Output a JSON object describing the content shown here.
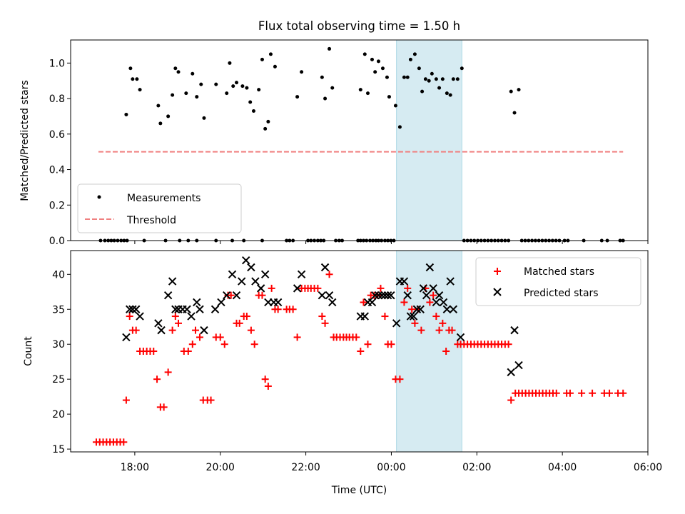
{
  "chart_data": {
    "type": "scatter",
    "title": "Flux total observing time = 1.50 h",
    "xlabel": "Time (UTC)",
    "x_unit": "hours since 00:00 UTC (negative = previous day)",
    "xlim": [
      -7.5,
      6.0
    ],
    "xticks": [
      {
        "v": -6,
        "label": "18:00"
      },
      {
        "v": -4,
        "label": "20:00"
      },
      {
        "v": -2,
        "label": "22:00"
      },
      {
        "v": 0,
        "label": "00:00"
      },
      {
        "v": 2,
        "label": "02:00"
      },
      {
        "v": 4,
        "label": "04:00"
      },
      {
        "v": 6,
        "label": "06:00"
      }
    ],
    "highlight_span": [
      0.12,
      1.65
    ],
    "top": {
      "ylabel": "Matched/Predicted stars",
      "ylim": [
        0,
        1.13
      ],
      "yticks": [
        {
          "v": 0.0,
          "label": "0.0"
        },
        {
          "v": 0.2,
          "label": "0.2"
        },
        {
          "v": 0.4,
          "label": "0.4"
        },
        {
          "v": 0.6,
          "label": "0.6"
        },
        {
          "v": 0.8,
          "label": "0.8"
        },
        {
          "v": 1.0,
          "label": "1.0"
        }
      ],
      "legend": {
        "position": "lower-left",
        "items": [
          "Measurements",
          "Threshold"
        ]
      },
      "threshold": {
        "value": 0.5,
        "x_range": [
          -6.85,
          5.42
        ]
      },
      "measurements": [
        [
          -6.2,
          0.71
        ],
        [
          -6.1,
          0.97
        ],
        [
          -6.05,
          0.91
        ],
        [
          -5.95,
          0.91
        ],
        [
          -5.88,
          0.85
        ],
        [
          -5.45,
          0.76
        ],
        [
          -5.4,
          0.66
        ],
        [
          -5.22,
          0.7
        ],
        [
          -5.12,
          0.82
        ],
        [
          -5.05,
          0.97
        ],
        [
          -4.98,
          0.95
        ],
        [
          -4.8,
          0.83
        ],
        [
          -4.65,
          0.94
        ],
        [
          -4.55,
          0.81
        ],
        [
          -4.45,
          0.88
        ],
        [
          -4.38,
          0.69
        ],
        [
          -4.1,
          0.88
        ],
        [
          -3.85,
          0.83
        ],
        [
          -3.78,
          1.0
        ],
        [
          -3.7,
          0.87
        ],
        [
          -3.62,
          0.89
        ],
        [
          -3.48,
          0.87
        ],
        [
          -3.38,
          0.86
        ],
        [
          -3.3,
          0.78
        ],
        [
          -3.22,
          0.73
        ],
        [
          -3.1,
          0.85
        ],
        [
          -3.02,
          1.02
        ],
        [
          -2.95,
          0.63
        ],
        [
          -2.88,
          0.67
        ],
        [
          -2.82,
          1.05
        ],
        [
          -2.72,
          0.98
        ],
        [
          -2.2,
          0.81
        ],
        [
          -2.1,
          0.95
        ],
        [
          -1.62,
          0.92
        ],
        [
          -1.55,
          0.8
        ],
        [
          -1.45,
          1.08
        ],
        [
          -1.38,
          0.86
        ],
        [
          -0.72,
          0.85
        ],
        [
          -0.62,
          1.05
        ],
        [
          -0.55,
          0.83
        ],
        [
          -0.45,
          1.02
        ],
        [
          -0.38,
          0.95
        ],
        [
          -0.3,
          1.01
        ],
        [
          -0.2,
          0.97
        ],
        [
          -0.1,
          0.92
        ],
        [
          -0.05,
          0.81
        ],
        [
          0.1,
          0.76
        ],
        [
          0.2,
          0.64
        ],
        [
          0.3,
          0.92
        ],
        [
          0.38,
          0.92
        ],
        [
          0.45,
          1.02
        ],
        [
          0.55,
          1.05
        ],
        [
          0.65,
          0.97
        ],
        [
          0.72,
          0.84
        ],
        [
          0.8,
          0.91
        ],
        [
          0.88,
          0.9
        ],
        [
          0.95,
          0.94
        ],
        [
          1.05,
          0.91
        ],
        [
          1.12,
          0.86
        ],
        [
          1.2,
          0.91
        ],
        [
          1.3,
          0.83
        ],
        [
          1.38,
          0.82
        ],
        [
          1.45,
          0.91
        ],
        [
          1.55,
          0.91
        ],
        [
          1.65,
          0.97
        ],
        [
          2.8,
          0.84
        ],
        [
          2.88,
          0.72
        ],
        [
          2.98,
          0.85
        ],
        [
          -6.8,
          0
        ],
        [
          -6.7,
          0
        ],
        [
          -6.62,
          0
        ],
        [
          -6.55,
          0
        ],
        [
          -6.48,
          0
        ],
        [
          -6.4,
          0
        ],
        [
          -6.32,
          0
        ],
        [
          -6.25,
          0
        ],
        [
          -6.18,
          0
        ],
        [
          -5.78,
          0
        ],
        [
          -5.28,
          0
        ],
        [
          -4.95,
          0
        ],
        [
          -4.75,
          0
        ],
        [
          -4.55,
          0
        ],
        [
          -4.1,
          0
        ],
        [
          -3.72,
          0
        ],
        [
          -3.45,
          0
        ],
        [
          -3.02,
          0
        ],
        [
          -2.45,
          0
        ],
        [
          -2.38,
          0
        ],
        [
          -2.3,
          0
        ],
        [
          -1.95,
          0
        ],
        [
          -1.88,
          0
        ],
        [
          -1.8,
          0
        ],
        [
          -1.72,
          0
        ],
        [
          -1.65,
          0
        ],
        [
          -1.58,
          0
        ],
        [
          -1.3,
          0
        ],
        [
          -1.22,
          0
        ],
        [
          -1.15,
          0
        ],
        [
          -0.78,
          0
        ],
        [
          -0.72,
          0
        ],
        [
          -0.65,
          0
        ],
        [
          -0.58,
          0
        ],
        [
          -0.5,
          0
        ],
        [
          -0.43,
          0
        ],
        [
          -0.36,
          0
        ],
        [
          -0.3,
          0
        ],
        [
          -0.23,
          0
        ],
        [
          -0.15,
          0
        ],
        [
          -0.08,
          0
        ],
        [
          -0.01,
          0
        ],
        [
          0.06,
          0
        ],
        [
          1.7,
          0
        ],
        [
          1.78,
          0
        ],
        [
          1.86,
          0
        ],
        [
          1.94,
          0
        ],
        [
          2.02,
          0
        ],
        [
          2.1,
          0
        ],
        [
          2.18,
          0
        ],
        [
          2.26,
          0
        ],
        [
          2.34,
          0
        ],
        [
          2.42,
          0
        ],
        [
          2.5,
          0
        ],
        [
          2.58,
          0
        ],
        [
          2.66,
          0
        ],
        [
          2.74,
          0
        ],
        [
          3.05,
          0
        ],
        [
          3.13,
          0
        ],
        [
          3.21,
          0
        ],
        [
          3.29,
          0
        ],
        [
          3.37,
          0
        ],
        [
          3.45,
          0
        ],
        [
          3.53,
          0
        ],
        [
          3.61,
          0
        ],
        [
          3.69,
          0
        ],
        [
          3.77,
          0
        ],
        [
          3.85,
          0
        ],
        [
          3.93,
          0
        ],
        [
          4.05,
          0
        ],
        [
          4.13,
          0
        ],
        [
          4.5,
          0
        ],
        [
          4.92,
          0
        ],
        [
          5.05,
          0
        ],
        [
          5.35,
          0
        ],
        [
          5.42,
          0
        ]
      ]
    },
    "bottom": {
      "ylabel": "Count",
      "ylim": [
        14.6,
        43.4
      ],
      "yticks": [
        {
          "v": 15,
          "label": "15"
        },
        {
          "v": 20,
          "label": "20"
        },
        {
          "v": 25,
          "label": "25"
        },
        {
          "v": 30,
          "label": "30"
        },
        {
          "v": 35,
          "label": "35"
        },
        {
          "v": 40,
          "label": "40"
        }
      ],
      "legend": {
        "position": "upper-right",
        "items": [
          "Matched stars",
          "Predicted stars"
        ]
      },
      "matched": [
        [
          -6.9,
          16
        ],
        [
          -6.82,
          16
        ],
        [
          -6.74,
          16
        ],
        [
          -6.66,
          16
        ],
        [
          -6.58,
          16
        ],
        [
          -6.5,
          16
        ],
        [
          -6.42,
          16
        ],
        [
          -6.34,
          16
        ],
        [
          -6.26,
          16
        ],
        [
          -6.2,
          22
        ],
        [
          -6.12,
          34
        ],
        [
          -6.05,
          32
        ],
        [
          -5.97,
          32
        ],
        [
          -5.88,
          29
        ],
        [
          -5.8,
          29
        ],
        [
          -5.72,
          29
        ],
        [
          -5.64,
          29
        ],
        [
          -5.56,
          29
        ],
        [
          -5.48,
          25
        ],
        [
          -5.4,
          21
        ],
        [
          -5.32,
          21
        ],
        [
          -5.22,
          26
        ],
        [
          -5.12,
          32
        ],
        [
          -5.05,
          34
        ],
        [
          -4.98,
          33
        ],
        [
          -4.85,
          29
        ],
        [
          -4.75,
          29
        ],
        [
          -4.65,
          30
        ],
        [
          -4.58,
          32
        ],
        [
          -4.48,
          31
        ],
        [
          -4.4,
          22
        ],
        [
          -4.3,
          22
        ],
        [
          -4.22,
          22
        ],
        [
          -4.1,
          31
        ],
        [
          -4.0,
          31
        ],
        [
          -3.9,
          30
        ],
        [
          -3.82,
          37
        ],
        [
          -3.75,
          37
        ],
        [
          -3.62,
          33
        ],
        [
          -3.55,
          33
        ],
        [
          -3.45,
          34
        ],
        [
          -3.38,
          34
        ],
        [
          -3.28,
          32
        ],
        [
          -3.2,
          30
        ],
        [
          -3.1,
          37
        ],
        [
          -3.02,
          37
        ],
        [
          -2.95,
          25
        ],
        [
          -2.88,
          24
        ],
        [
          -2.8,
          38
        ],
        [
          -2.72,
          35
        ],
        [
          -2.65,
          35
        ],
        [
          -2.45,
          35
        ],
        [
          -2.38,
          35
        ],
        [
          -2.3,
          35
        ],
        [
          -2.2,
          31
        ],
        [
          -2.1,
          38
        ],
        [
          -2.02,
          38
        ],
        [
          -1.95,
          38
        ],
        [
          -1.88,
          38
        ],
        [
          -1.8,
          38
        ],
        [
          -1.72,
          38
        ],
        [
          -1.62,
          34
        ],
        [
          -1.55,
          33
        ],
        [
          -1.45,
          40
        ],
        [
          -1.35,
          31
        ],
        [
          -1.28,
          31
        ],
        [
          -1.2,
          31
        ],
        [
          -1.12,
          31
        ],
        [
          -1.05,
          31
        ],
        [
          -0.98,
          31
        ],
        [
          -0.9,
          31
        ],
        [
          -0.82,
          31
        ],
        [
          -0.72,
          29
        ],
        [
          -0.65,
          36
        ],
        [
          -0.55,
          30
        ],
        [
          -0.48,
          37
        ],
        [
          -0.4,
          37
        ],
        [
          -0.32,
          37
        ],
        [
          -0.25,
          38
        ],
        [
          -0.15,
          34
        ],
        [
          -0.08,
          30
        ],
        [
          0.0,
          30
        ],
        [
          0.1,
          25
        ],
        [
          0.2,
          25
        ],
        [
          0.3,
          36
        ],
        [
          0.38,
          38
        ],
        [
          0.48,
          35
        ],
        [
          0.55,
          33
        ],
        [
          0.62,
          35
        ],
        [
          0.7,
          32
        ],
        [
          0.8,
          38
        ],
        [
          0.9,
          36
        ],
        [
          0.98,
          37
        ],
        [
          1.05,
          34
        ],
        [
          1.12,
          32
        ],
        [
          1.2,
          33
        ],
        [
          1.28,
          29
        ],
        [
          1.35,
          32
        ],
        [
          1.42,
          32
        ],
        [
          1.55,
          30
        ],
        [
          1.62,
          30
        ],
        [
          1.7,
          30
        ],
        [
          1.78,
          30
        ],
        [
          1.86,
          30
        ],
        [
          1.94,
          30
        ],
        [
          2.02,
          30
        ],
        [
          2.1,
          30
        ],
        [
          2.18,
          30
        ],
        [
          2.26,
          30
        ],
        [
          2.34,
          30
        ],
        [
          2.42,
          30
        ],
        [
          2.5,
          30
        ],
        [
          2.58,
          30
        ],
        [
          2.66,
          30
        ],
        [
          2.74,
          30
        ],
        [
          2.8,
          22
        ],
        [
          2.9,
          23
        ],
        [
          2.98,
          23
        ],
        [
          3.06,
          23
        ],
        [
          3.14,
          23
        ],
        [
          3.22,
          23
        ],
        [
          3.3,
          23
        ],
        [
          3.38,
          23
        ],
        [
          3.46,
          23
        ],
        [
          3.54,
          23
        ],
        [
          3.62,
          23
        ],
        [
          3.7,
          23
        ],
        [
          3.78,
          23
        ],
        [
          3.86,
          23
        ],
        [
          4.1,
          23
        ],
        [
          4.18,
          23
        ],
        [
          4.45,
          23
        ],
        [
          4.7,
          23
        ],
        [
          4.98,
          23
        ],
        [
          5.1,
          23
        ],
        [
          5.3,
          23
        ],
        [
          5.42,
          23
        ]
      ],
      "predicted": [
        [
          -6.2,
          31
        ],
        [
          -6.12,
          35
        ],
        [
          -6.05,
          35
        ],
        [
          -5.97,
          35
        ],
        [
          -5.88,
          34
        ],
        [
          -5.45,
          33
        ],
        [
          -5.38,
          32
        ],
        [
          -5.22,
          37
        ],
        [
          -5.12,
          39
        ],
        [
          -5.05,
          35
        ],
        [
          -4.98,
          35
        ],
        [
          -4.88,
          35
        ],
        [
          -4.78,
          35
        ],
        [
          -4.68,
          34
        ],
        [
          -4.55,
          36
        ],
        [
          -4.48,
          35
        ],
        [
          -4.38,
          32
        ],
        [
          -4.12,
          35
        ],
        [
          -3.98,
          36
        ],
        [
          -3.85,
          37
        ],
        [
          -3.72,
          40
        ],
        [
          -3.62,
          37
        ],
        [
          -3.5,
          39
        ],
        [
          -3.4,
          42
        ],
        [
          -3.28,
          41
        ],
        [
          -3.18,
          39
        ],
        [
          -3.05,
          38
        ],
        [
          -2.95,
          40
        ],
        [
          -2.88,
          36
        ],
        [
          -2.75,
          36
        ],
        [
          -2.65,
          36
        ],
        [
          -2.2,
          38
        ],
        [
          -2.1,
          40
        ],
        [
          -1.62,
          37
        ],
        [
          -1.55,
          41
        ],
        [
          -1.45,
          37
        ],
        [
          -1.38,
          36
        ],
        [
          -0.72,
          34
        ],
        [
          -0.62,
          34
        ],
        [
          -0.55,
          36
        ],
        [
          -0.45,
          36
        ],
        [
          -0.38,
          37
        ],
        [
          -0.3,
          37
        ],
        [
          -0.22,
          37
        ],
        [
          -0.15,
          37
        ],
        [
          -0.08,
          37
        ],
        [
          -0.01,
          37
        ],
        [
          0.12,
          33
        ],
        [
          0.2,
          39
        ],
        [
          0.3,
          39
        ],
        [
          0.38,
          37
        ],
        [
          0.45,
          34
        ],
        [
          0.52,
          34
        ],
        [
          0.6,
          35
        ],
        [
          0.68,
          35
        ],
        [
          0.75,
          38
        ],
        [
          0.82,
          37
        ],
        [
          0.9,
          41
        ],
        [
          0.98,
          38
        ],
        [
          1.05,
          36
        ],
        [
          1.12,
          37
        ],
        [
          1.22,
          36
        ],
        [
          1.3,
          35
        ],
        [
          1.38,
          39
        ],
        [
          1.45,
          35
        ],
        [
          1.62,
          31
        ],
        [
          2.8,
          26
        ],
        [
          2.88,
          32
        ],
        [
          2.98,
          27
        ]
      ]
    }
  }
}
